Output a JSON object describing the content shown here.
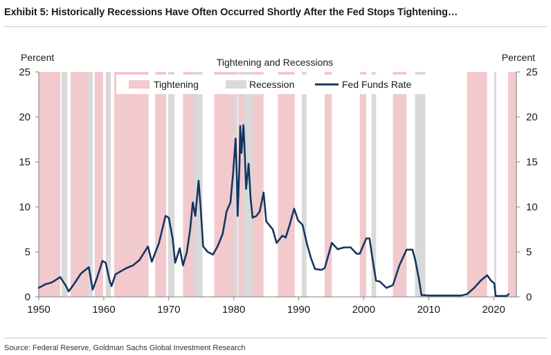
{
  "header": {
    "title": "Exhibit 5: Historically Recessions Have Often Occurred Shortly After the Fed Stops Tightening…"
  },
  "footer": {
    "source": "Source: Federal Reserve, Goldman Sachs Global Investment Research"
  },
  "colors": {
    "tightening": "#f2c9cc",
    "recession": "#d9d9d9",
    "fed_funds": "#14355f",
    "axis": "#7f7f7f"
  },
  "chart_data": {
    "type": "line",
    "title": "Tightening and Recessions",
    "ylabel_left": "Percent",
    "ylabel_right": "Percent",
    "xlim": [
      1950,
      2023.5
    ],
    "ylim": [
      0,
      25
    ],
    "xticks": [
      1950,
      1960,
      1970,
      1980,
      1990,
      2000,
      2010,
      2020
    ],
    "yticks": [
      0,
      5,
      10,
      15,
      20,
      25
    ],
    "grid": false,
    "legend": {
      "placement": "top-center",
      "entries": [
        {
          "label": "Tightening",
          "kind": "band",
          "color": "#f2c9cc"
        },
        {
          "label": "Recession",
          "kind": "band",
          "color": "#d9d9d9"
        },
        {
          "label": "Fed Funds Rate",
          "kind": "line",
          "color": "#14355f"
        }
      ]
    },
    "tightening_periods": [
      [
        1950.0,
        1953.3
      ],
      [
        1954.9,
        1957.8
      ],
      [
        1958.6,
        1959.9
      ],
      [
        1961.6,
        1966.9
      ],
      [
        1967.9,
        1969.6
      ],
      [
        1972.2,
        1974.5
      ],
      [
        1977.0,
        1980.3
      ],
      [
        1980.7,
        1984.6
      ],
      [
        1986.8,
        1989.4
      ],
      [
        1994.0,
        1995.1
      ],
      [
        1999.4,
        2000.4
      ],
      [
        2004.5,
        2006.6
      ],
      [
        2015.9,
        2019.0
      ],
      [
        2022.2,
        2023.5
      ]
    ],
    "recession_periods": [
      [
        1953.5,
        1954.4
      ],
      [
        1957.6,
        1958.3
      ],
      [
        1960.3,
        1961.1
      ],
      [
        1969.9,
        1970.9
      ],
      [
        1973.9,
        1975.2
      ],
      [
        1980.0,
        1980.6
      ],
      [
        1981.5,
        1982.9
      ],
      [
        1990.5,
        1991.2
      ],
      [
        2001.2,
        2001.9
      ],
      [
        2007.9,
        2009.5
      ],
      [
        2020.1,
        2020.4
      ]
    ],
    "series": [
      {
        "name": "Fed Funds Rate",
        "points": [
          [
            1950.0,
            1.0
          ],
          [
            1951.0,
            1.4
          ],
          [
            1952.0,
            1.6
          ],
          [
            1953.3,
            2.2
          ],
          [
            1954.2,
            1.2
          ],
          [
            1954.6,
            0.6
          ],
          [
            1955.5,
            1.5
          ],
          [
            1956.5,
            2.6
          ],
          [
            1957.7,
            3.3
          ],
          [
            1958.3,
            0.8
          ],
          [
            1959.0,
            2.2
          ],
          [
            1959.8,
            4.0
          ],
          [
            1960.3,
            3.8
          ],
          [
            1960.9,
            1.8
          ],
          [
            1961.2,
            1.2
          ],
          [
            1961.8,
            2.5
          ],
          [
            1962.5,
            2.8
          ],
          [
            1963.5,
            3.2
          ],
          [
            1964.5,
            3.5
          ],
          [
            1965.5,
            4.1
          ],
          [
            1966.8,
            5.6
          ],
          [
            1967.4,
            3.9
          ],
          [
            1968.5,
            6.0
          ],
          [
            1969.5,
            9.0
          ],
          [
            1970.0,
            8.8
          ],
          [
            1970.6,
            6.5
          ],
          [
            1971.0,
            3.8
          ],
          [
            1971.7,
            5.4
          ],
          [
            1972.2,
            3.5
          ],
          [
            1972.8,
            5.0
          ],
          [
            1973.3,
            7.5
          ],
          [
            1973.7,
            10.5
          ],
          [
            1974.1,
            9.0
          ],
          [
            1974.6,
            12.9
          ],
          [
            1974.9,
            10.0
          ],
          [
            1975.3,
            5.6
          ],
          [
            1976.0,
            5.0
          ],
          [
            1976.8,
            4.7
          ],
          [
            1977.5,
            5.6
          ],
          [
            1978.3,
            7.0
          ],
          [
            1978.9,
            9.5
          ],
          [
            1979.5,
            10.5
          ],
          [
            1979.9,
            13.7
          ],
          [
            1980.3,
            17.6
          ],
          [
            1980.5,
            13.0
          ],
          [
            1980.6,
            9.0
          ],
          [
            1980.9,
            15.0
          ],
          [
            1981.0,
            19.0
          ],
          [
            1981.2,
            16.0
          ],
          [
            1981.5,
            19.1
          ],
          [
            1981.7,
            16.0
          ],
          [
            1981.9,
            12.0
          ],
          [
            1982.3,
            14.8
          ],
          [
            1982.6,
            11.0
          ],
          [
            1982.9,
            8.8
          ],
          [
            1983.5,
            9.0
          ],
          [
            1984.0,
            9.5
          ],
          [
            1984.6,
            11.6
          ],
          [
            1985.0,
            8.4
          ],
          [
            1986.0,
            7.5
          ],
          [
            1986.6,
            6.0
          ],
          [
            1987.5,
            6.8
          ],
          [
            1988.0,
            6.6
          ],
          [
            1988.6,
            8.0
          ],
          [
            1989.3,
            9.8
          ],
          [
            1989.9,
            8.5
          ],
          [
            1990.6,
            8.0
          ],
          [
            1991.3,
            5.8
          ],
          [
            1991.9,
            4.3
          ],
          [
            1992.5,
            3.1
          ],
          [
            1993.5,
            3.0
          ],
          [
            1994.0,
            3.2
          ],
          [
            1995.1,
            6.0
          ],
          [
            1996.0,
            5.3
          ],
          [
            1997.0,
            5.5
          ],
          [
            1998.0,
            5.5
          ],
          [
            1998.9,
            4.8
          ],
          [
            1999.4,
            4.8
          ],
          [
            2000.4,
            6.5
          ],
          [
            2000.9,
            6.5
          ],
          [
            2001.3,
            4.5
          ],
          [
            2001.9,
            1.8
          ],
          [
            2002.5,
            1.7
          ],
          [
            2003.5,
            1.0
          ],
          [
            2004.5,
            1.3
          ],
          [
            2005.5,
            3.5
          ],
          [
            2006.6,
            5.25
          ],
          [
            2007.5,
            5.25
          ],
          [
            2007.9,
            4.2
          ],
          [
            2008.5,
            2.0
          ],
          [
            2008.9,
            0.2
          ],
          [
            2010.0,
            0.15
          ],
          [
            2012.0,
            0.15
          ],
          [
            2015.0,
            0.15
          ],
          [
            2015.9,
            0.3
          ],
          [
            2017.0,
            1.0
          ],
          [
            2018.0,
            1.8
          ],
          [
            2019.0,
            2.4
          ],
          [
            2019.6,
            1.8
          ],
          [
            2020.1,
            1.5
          ],
          [
            2020.3,
            0.1
          ],
          [
            2022.0,
            0.1
          ],
          [
            2022.3,
            0.3
          ]
        ]
      }
    ]
  }
}
